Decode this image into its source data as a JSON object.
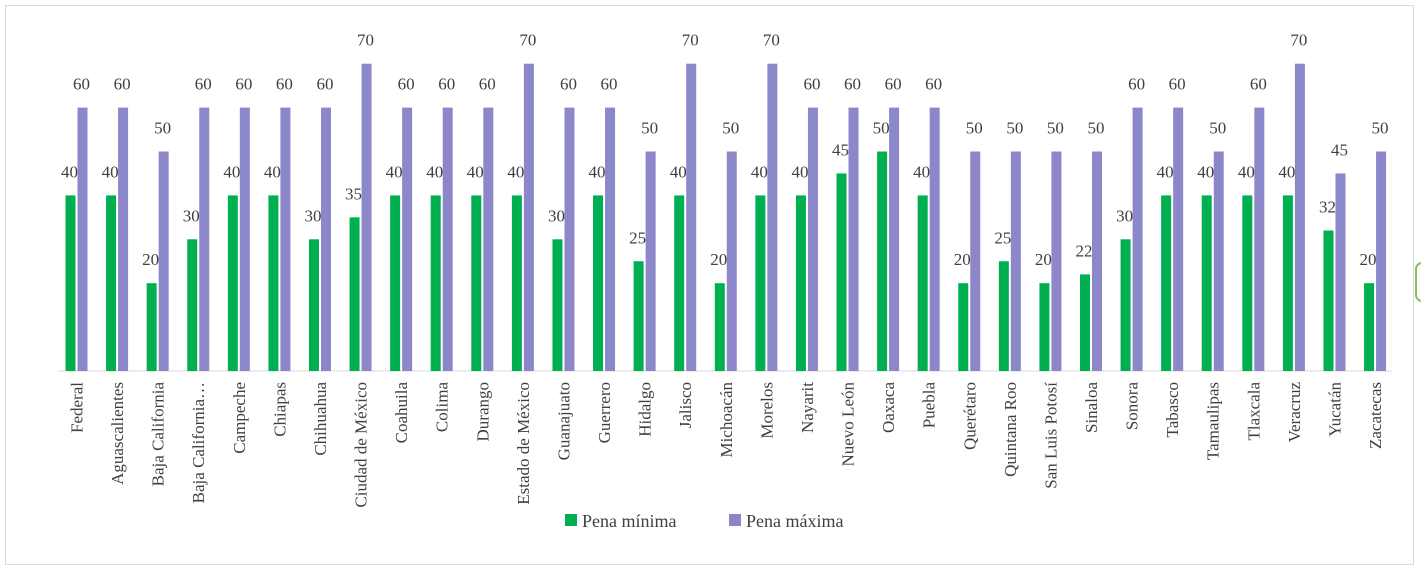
{
  "chart_data": {
    "type": "bar",
    "categories": [
      "Federal",
      "Aguascalientes",
      "Baja California",
      "Baja California…",
      "Campeche",
      "Chiapas",
      "Chihuahua",
      "Ciudad de México",
      "Coahuila",
      "Colima",
      "Durango",
      "Estado de México",
      "Guanajuato",
      "Guerrero",
      "Hidalgo",
      "Jalisco",
      "Michoacán",
      "Morelos",
      "Nayarit",
      "Nuevo León",
      "Oaxaca",
      "Puebla",
      "Querétaro",
      "Quintana Roo",
      "San Luis Potosí",
      "Sinaloa",
      "Sonora",
      "Tabasco",
      "Tamaulipas",
      "Tlaxcala",
      "Veracruz",
      "Yucatán",
      "Zacatecas"
    ],
    "series": [
      {
        "name": "Pena mínima",
        "color": "#00b050",
        "values": [
          40,
          40,
          20,
          30,
          40,
          40,
          30,
          35,
          40,
          40,
          40,
          40,
          30,
          40,
          25,
          40,
          20,
          40,
          40,
          45,
          50,
          40,
          20,
          25,
          20,
          22,
          30,
          40,
          40,
          40,
          40,
          32,
          20
        ]
      },
      {
        "name": "Pena máxima",
        "color": "#8c87c9",
        "values": [
          60,
          60,
          50,
          60,
          60,
          60,
          60,
          70,
          60,
          60,
          60,
          70,
          60,
          60,
          50,
          70,
          50,
          70,
          60,
          60,
          60,
          60,
          50,
          50,
          50,
          50,
          60,
          60,
          50,
          60,
          70,
          45,
          50
        ]
      }
    ],
    "ylim": [
      0,
      70
    ],
    "grid": false,
    "legend": "bottom",
    "title": "",
    "xlabel": "",
    "ylabel": ""
  }
}
